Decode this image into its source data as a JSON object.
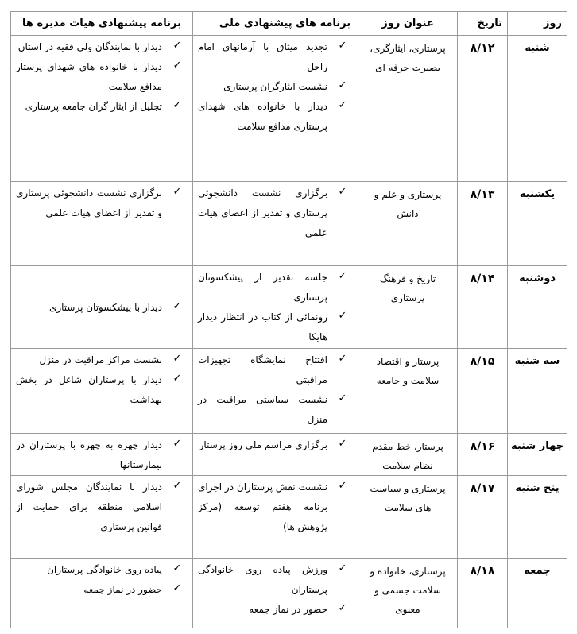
{
  "headers": {
    "day": "روز",
    "date": "تاریخ",
    "title": "عنوان روز",
    "national": "برنامه های پیشنهادی ملی",
    "board": "برنامه پیشنهادی هیات مدیره ها"
  },
  "check_icon": "✓",
  "rows": [
    {
      "day": "شنبه",
      "date": "۸/۱۲",
      "title": "پرستاری، ایثارگری، بصیرت حرفه ای",
      "national": [
        "تجدید میثاق با آرمانهای امام راحل",
        "نشست ایثارگران پرستاری",
        "دیدار با خانواده های شهدای پرستاری مدافع سلامت"
      ],
      "board": [
        "دیدار با نمایندگان ولی فقیه در استان",
        "دیدار با خانواده های شهدای پرستار مدافع سلامت",
        "تجلیل از ایثار گران جامعه پرستاری"
      ]
    },
    {
      "day": "یکشنبه",
      "date": "۸/۱۳",
      "title": "پرستاری و علم و دانش",
      "national": [
        "برگزاری نشست دانشجوئی پرستاری و تقدیر از اعضای هیات علمی"
      ],
      "board": [
        "برگزاری نشست دانشجوئی پرستاری و تقدیر از اعضای هیات علمی"
      ]
    },
    {
      "day": "دوشنبه",
      "date": "۸/۱۴",
      "title": "تاریخ و فرهنگ پرستاری",
      "national": [
        "جلسه تقدیر از پیشکسوتان پرستاری",
        "رونمائی از کتاب در انتظار دیدار هایکا"
      ],
      "board": [
        "دیدار با پیشکسوتان پرستاری"
      ]
    },
    {
      "day": "سه شنبه",
      "date": "۸/۱۵",
      "title": "پرستار و اقتصاد سلامت و جامعه",
      "national": [
        "افتتاح نمایشگاه تجهیزات مراقبتی",
        "نشست سیاستی مراقبت در منزل"
      ],
      "board": [
        "نشست مراکز مراقبت در منزل",
        "دیدار با پرستاران شاغل در بخش بهداشت"
      ]
    },
    {
      "day": "چهار شنبه",
      "date": "۸/۱۶",
      "title": "پرستار، خط مقدم نظام سلامت",
      "national": [
        "برگزاری مراسم ملی روز پرستار"
      ],
      "board": [
        "دیدار چهره به چهره با پرستاران در بیمارستانها"
      ]
    },
    {
      "day": "پنج شنبه",
      "date": "۸/۱۷",
      "title": "پرستاری و سیاست های سلامت",
      "national": [
        "نشست نقش پرستاران در اجرای برنامه هفتم توسعه (مرکز پژوهش ها)"
      ],
      "board": [
        "دیدار با نمایندگان مجلس شورای اسلامی منطقه برای حمایت از قوانین پرستاری"
      ]
    },
    {
      "day": "جمعه",
      "date": "۸/۱۸",
      "title": "پرستاری، خانواده و سلامت جسمی و معنوی",
      "national": [
        "ورزش پیاده روی خانوادگی پرستاران",
        "حضور در نماز جمعه"
      ],
      "board": [
        "پیاده روی خانوادگی پرستاران",
        "حضور در نماز جمعه"
      ]
    }
  ]
}
